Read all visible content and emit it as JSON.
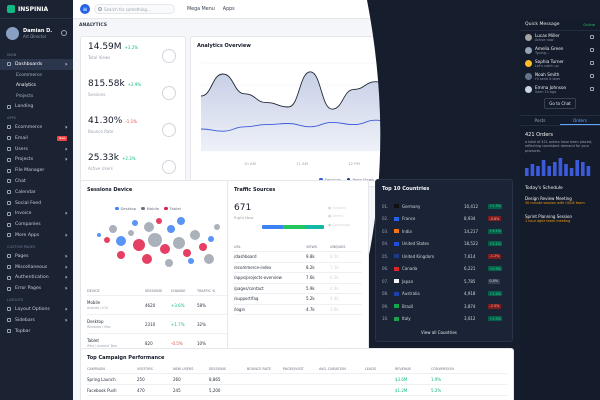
{
  "brand": {
    "name": "INSPINIA"
  },
  "profile": {
    "name": "Damian D.",
    "role": "Art Director"
  },
  "sidebar": {
    "sections": [
      {
        "label": "MAIN"
      },
      {
        "label": "APPS"
      },
      {
        "label": "CUSTOM PAGES"
      },
      {
        "label": "LAYOUTS"
      }
    ],
    "items": [
      {
        "label": "Dashboards"
      },
      {
        "label": "Ecommerce"
      },
      {
        "label": "Analytics"
      },
      {
        "label": "Projects"
      },
      {
        "label": "Landing"
      },
      {
        "label": "Ecommerce"
      },
      {
        "label": "Email"
      },
      {
        "label": "Users"
      },
      {
        "label": "Projects"
      },
      {
        "label": "File Manager"
      },
      {
        "label": "Chat"
      },
      {
        "label": "Calendar"
      },
      {
        "label": "Social Feed"
      },
      {
        "label": "Invoice"
      },
      {
        "label": "Companies"
      },
      {
        "label": "More Apps"
      },
      {
        "label": "Pages"
      },
      {
        "label": "Miscellaneous"
      },
      {
        "label": "Authentication"
      },
      {
        "label": "Error Pages"
      },
      {
        "label": "Layout Options"
      },
      {
        "label": "Sidebars"
      },
      {
        "label": "Topbar"
      }
    ],
    "email_badge": "New"
  },
  "topbar": {
    "search_placeholder": "Search for something...",
    "mega_menu": "Mega Menu",
    "apps": "Apps",
    "lang": "EN",
    "user": "Damian D."
  },
  "page": {
    "title": "ANALYTICS",
    "breadcrumb": "Inspinia  ›  Dashboard  ›  Analytics"
  },
  "kpis": [
    {
      "value": "14.59M",
      "delta": "+3.2%",
      "label": "Total Views",
      "trend": "up"
    },
    {
      "value": "815.58k",
      "delta": "+2.9%",
      "label": "Sessions",
      "trend": "up"
    },
    {
      "value": "41.30%",
      "delta": "-1.1%",
      "label": "Bounce Rate",
      "trend": "down"
    },
    {
      "value": "25.33k",
      "delta": "+2.3%",
      "label": "Active Users",
      "trend": "up"
    }
  ],
  "analytics_overview": {
    "title": "Analytics Overview",
    "export_label": "Export CSV",
    "x_labels": [
      "10 AM",
      "11 AM",
      "12 PM",
      "01 PM",
      "02 PM"
    ],
    "legend": [
      "Sessions",
      "Page Views"
    ]
  },
  "chart_data": {
    "type": "area",
    "title": "Analytics Overview",
    "series": [
      {
        "name": "Sessions",
        "values": [
          50,
          70,
          52,
          44,
          40,
          72,
          38,
          56,
          63,
          50,
          66,
          45,
          60,
          48,
          62
        ]
      },
      {
        "name": "Page Views",
        "values": [
          20,
          18,
          22,
          24,
          25,
          22,
          26,
          24,
          28,
          24,
          30,
          26,
          28,
          24,
          27
        ]
      }
    ]
  },
  "sessions_device": {
    "title": "Sessions Device",
    "legend": [
      "Desktop",
      "Mobile",
      "Tablet"
    ],
    "cols": [
      "DEVICE",
      "SESSIONS",
      "CHANGE",
      "TRAFFIC %"
    ],
    "rows": [
      {
        "device": "Mobile",
        "sub": "Android / iOS",
        "sessions": "4620",
        "change": "+3.6%",
        "traffic": "58%",
        "trend": "up"
      },
      {
        "device": "Desktop",
        "sub": "Windows / Mac",
        "sessions": "2310",
        "change": "+1.7%",
        "traffic": "32%",
        "trend": "up"
      },
      {
        "device": "Tablet",
        "sub": "iPad / Android Tabs",
        "sessions": "820",
        "change": "-0.5%",
        "traffic": "10%",
        "trend": "down"
      }
    ]
  },
  "traffic_sources": {
    "title": "Traffic Sources",
    "value": "671",
    "sub": "Right Now",
    "legend": [
      "Organic",
      "Direct",
      "Campaign"
    ],
    "cols": [
      "URL",
      "VIEWS",
      "UNIQUES"
    ],
    "rows": [
      {
        "url": "/dashboard",
        "views": "9.8k",
        "uniques": "8.5k"
      },
      {
        "url": "/ecommerce-index",
        "views": "8.2k",
        "uniques": "7.1k"
      },
      {
        "url": "/apps/projects-overview",
        "views": "7.6k",
        "uniques": "6.2k"
      },
      {
        "url": "/pages/contact",
        "views": "5.9k",
        "uniques": "4.9k"
      },
      {
        "url": "/support/faq",
        "views": "5.2k",
        "uniques": "4.4k"
      },
      {
        "url": "/login",
        "views": "4.7k",
        "uniques": "3.9k"
      }
    ],
    "footer": "View all Links"
  },
  "top_countries": {
    "title": "Top 10 Countries",
    "rows": [
      {
        "rank": "01.",
        "name": "Germany",
        "value": "10,412",
        "change": "+1.5%",
        "trend": "up"
      },
      {
        "rank": "02.",
        "name": "France",
        "value": "8,934",
        "change": "-0.8%",
        "trend": "down"
      },
      {
        "rank": "03.",
        "name": "India",
        "value": "14,217",
        "change": "+3.1%",
        "trend": "up"
      },
      {
        "rank": "04.",
        "name": "United States",
        "value": "18,522",
        "change": "+2.1%",
        "trend": "up"
      },
      {
        "rank": "05.",
        "name": "United Kingdom",
        "value": "7,614",
        "change": "-1.2%",
        "trend": "down"
      },
      {
        "rank": "06.",
        "name": "Canada",
        "value": "6,221",
        "change": "+0.9%",
        "trend": "up"
      },
      {
        "rank": "07.",
        "name": "Japan",
        "value": "5,785",
        "change": "0.0%",
        "trend": "flat"
      },
      {
        "rank": "08.",
        "name": "Australia",
        "value": "4,918",
        "change": "+1.4%",
        "trend": "up"
      },
      {
        "rank": "09.",
        "name": "Brazil",
        "value": "3,874",
        "change": "-2.5%",
        "trend": "down"
      },
      {
        "rank": "10.",
        "name": "Italy",
        "value": "3,012",
        "change": "+1.0%",
        "trend": "up"
      }
    ],
    "footer": "View all Countries"
  },
  "campaign": {
    "title": "Top Campaign Performance",
    "cols": [
      "CAMPAIGN",
      "VISITORS",
      "NEW USERS",
      "SESSIONS",
      "BOUNCE RATE",
      "PAGES/VISIT",
      "AVG. DURATION",
      "LEADS",
      "REVENUE",
      "CONVERSION"
    ],
    "rows": [
      {
        "name": "Spring Launch",
        "visitors": "250",
        "new_users": "260",
        "sessions": "8,865",
        "bounce": "",
        "pages": "",
        "duration": "",
        "leads": "",
        "revenue": "$3.6M",
        "conversion": "1.9%"
      },
      {
        "name": "Facebook Push",
        "visitors": "470",
        "new_users": "245",
        "sessions": "5,200",
        "bounce": "",
        "pages": "",
        "duration": "",
        "leads": "",
        "revenue": "$1.2M",
        "conversion": "5.2%"
      }
    ]
  },
  "quick_message": {
    "title": "Quick Message",
    "status": "Online",
    "people": [
      {
        "name": "Lucas Miller",
        "status": "Active now"
      },
      {
        "name": "Amelia Green",
        "status": "Typing..."
      },
      {
        "name": "Sophia Turner",
        "status": "Let's catch up"
      },
      {
        "name": "Noah Smith",
        "status": "I'll send it later"
      },
      {
        "name": "Emma Johnson",
        "status": "Seen 1h ago"
      }
    ],
    "cta": "Go to Chat"
  },
  "panel_tabs": [
    "Posts",
    "Orders"
  ],
  "orders": {
    "count": "421 Orders",
    "text": "a total of 421 orders have been placed, reflecting consistent demand for your products.",
    "bars": [
      4,
      6,
      5,
      8,
      5,
      7,
      9,
      6,
      4,
      8,
      7,
      5
    ]
  },
  "schedule": {
    "title": "Today's Schedule",
    "events": [
      {
        "title": "Design Review Meeting",
        "detail": "30 minute session with UI/UX team"
      },
      {
        "title": "Sprint Planning Session",
        "detail": "1 hour agile team meeting"
      }
    ]
  },
  "theme": {
    "accent": "#2563eb",
    "up": "#10b981",
    "down": "#ef4444"
  }
}
